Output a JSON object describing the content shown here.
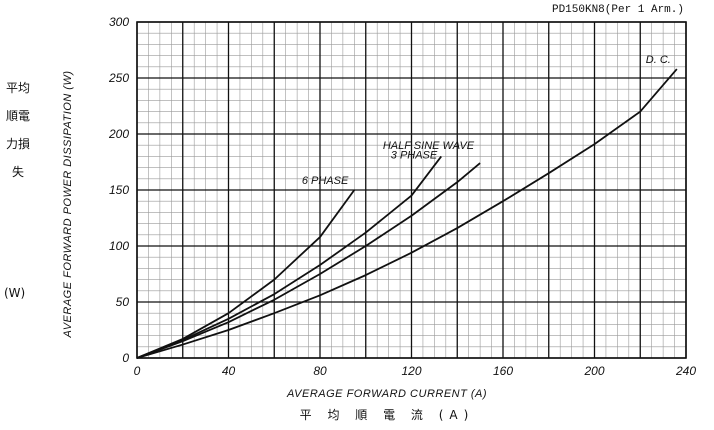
{
  "part_label": "PD150KN8(Per 1 Arm.)",
  "y_label_jp": "平均順電力損失",
  "y_label_unit": "(W)",
  "y_label_en": "AVERAGE FORWARD POWER DISSIPATION (W)",
  "x_label_en": "AVERAGE FORWARD CURRENT (A)",
  "x_label_jp": "平 均 順 電 流 (A)",
  "chart_data": {
    "type": "line",
    "xlim": [
      0,
      240
    ],
    "ylim": [
      0,
      300
    ],
    "x_ticks": [
      0,
      40,
      80,
      120,
      160,
      200,
      240
    ],
    "y_ticks": [
      0,
      50,
      100,
      150,
      200,
      250,
      300
    ],
    "grid": true,
    "series": [
      {
        "name": "6 PHASE",
        "x": [
          0,
          20,
          40,
          60,
          80,
          95
        ],
        "y": [
          0,
          17,
          40,
          70,
          108,
          150
        ]
      },
      {
        "name": "3 PHASE",
        "x": [
          0,
          20,
          40,
          60,
          80,
          100,
          120,
          133
        ],
        "y": [
          0,
          16,
          35,
          57,
          83,
          112,
          145,
          180
        ]
      },
      {
        "name": "HALF SINE WAVE",
        "x": [
          0,
          20,
          40,
          60,
          80,
          100,
          120,
          140,
          150
        ],
        "y": [
          0,
          15,
          32,
          52,
          75,
          100,
          127,
          157,
          174
        ]
      },
      {
        "name": "D.C.",
        "x": [
          0,
          20,
          40,
          60,
          80,
          100,
          120,
          140,
          160,
          180,
          200,
          220,
          236
        ],
        "y": [
          0,
          12,
          25,
          40,
          56,
          74,
          94,
          116,
          140,
          165,
          191,
          220,
          258
        ]
      }
    ],
    "curve_labels": [
      {
        "text": "6 PHASE",
        "series": 0
      },
      {
        "text": "HALF SINE WAVE",
        "series": 2
      },
      {
        "text": "3 PHASE",
        "series": 1
      },
      {
        "text": "D. C.",
        "series": 3
      }
    ]
  }
}
